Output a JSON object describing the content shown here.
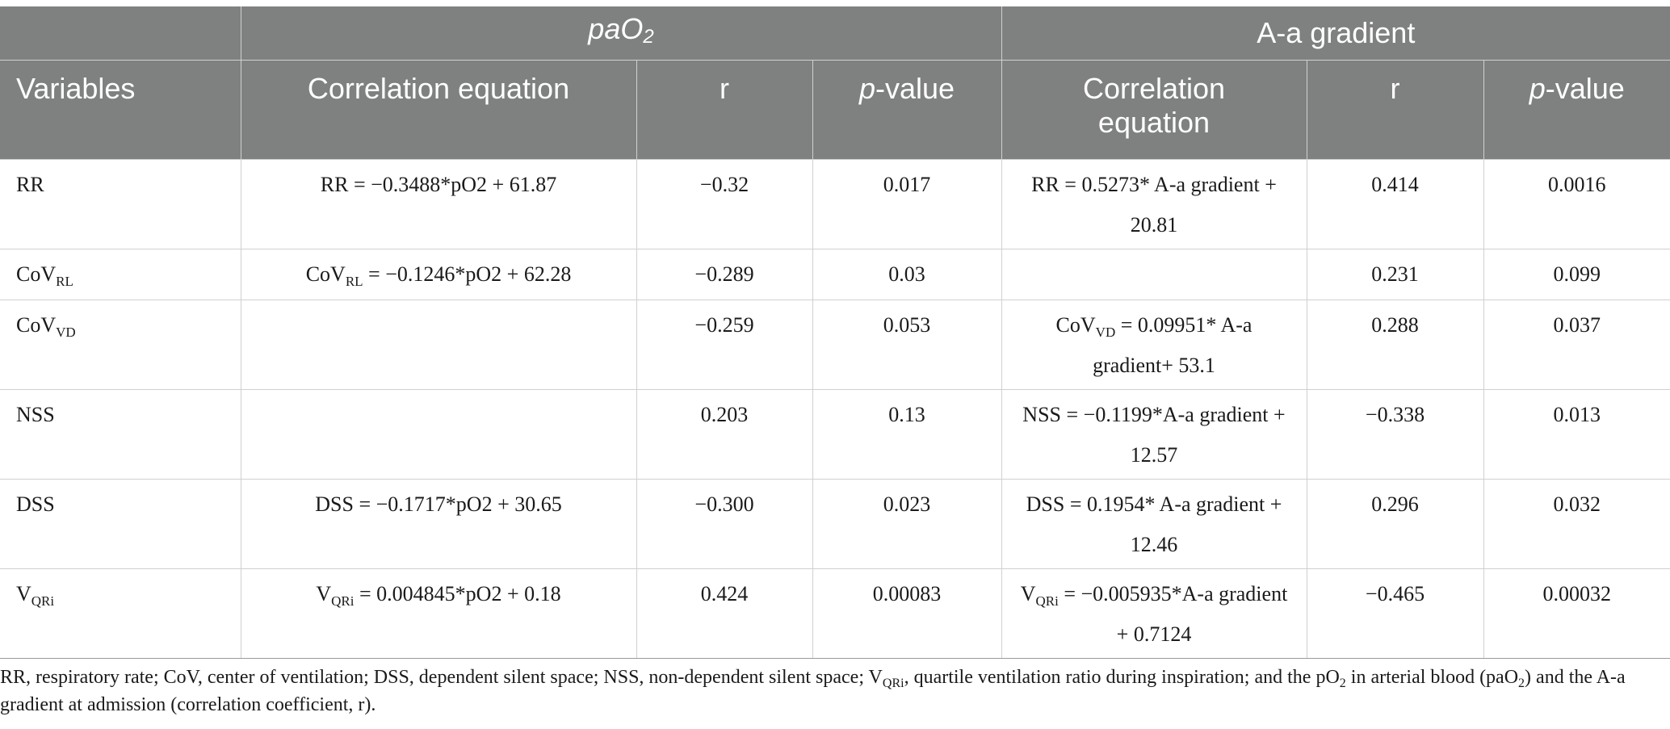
{
  "header": {
    "group_paO2": {
      "base": "paO",
      "sub": "2"
    },
    "group_aa": "A-a gradient",
    "variables": "Variables",
    "correlation_equation": "Correlation equation",
    "correlation_equation_aa_line1": "Correlation",
    "correlation_equation_aa_line2": "equation",
    "r": "r",
    "p_italic": "p",
    "p_rest": "-value"
  },
  "rows": [
    {
      "var": {
        "base": "RR",
        "sub": ""
      },
      "pa_eq": {
        "pre": "RR = −0.3488*pO2 + 61.87",
        "sub": "",
        "post": ""
      },
      "pa_r": "−0.32",
      "pa_p": "0.017",
      "aa_eq": {
        "pre": "RR = 0.5273* A-a gradient + 20.81",
        "sub": "",
        "post": ""
      },
      "aa_r": "0.414",
      "aa_p": "0.0016"
    },
    {
      "var": {
        "base": "CoV",
        "sub": "RL"
      },
      "pa_eq": {
        "pre": "CoV",
        "sub": "RL",
        "post": " = −0.1246*pO2 + 62.28"
      },
      "pa_r": "−0.289",
      "pa_p": "0.03",
      "aa_eq": {
        "pre": "",
        "sub": "",
        "post": ""
      },
      "aa_r": "0.231",
      "aa_p": "0.099"
    },
    {
      "var": {
        "base": "CoV",
        "sub": "VD"
      },
      "pa_eq": {
        "pre": "",
        "sub": "",
        "post": ""
      },
      "pa_r": "−0.259",
      "pa_p": "0.053",
      "aa_eq": {
        "pre": "CoV",
        "sub": "VD",
        "post": " = 0.09951* A-a gradient+ 53.1"
      },
      "aa_r": "0.288",
      "aa_p": "0.037"
    },
    {
      "var": {
        "base": "NSS",
        "sub": ""
      },
      "pa_eq": {
        "pre": "",
        "sub": "",
        "post": ""
      },
      "pa_r": "0.203",
      "pa_p": "0.13",
      "aa_eq": {
        "pre": "NSS = −0.1199*A-a gradient + 12.57",
        "sub": "",
        "post": ""
      },
      "aa_r": "−0.338",
      "aa_p": "0.013"
    },
    {
      "var": {
        "base": "DSS",
        "sub": ""
      },
      "pa_eq": {
        "pre": "DSS = −0.1717*pO2 + 30.65",
        "sub": "",
        "post": ""
      },
      "pa_r": "−0.300",
      "pa_p": "0.023",
      "aa_eq": {
        "pre": "DSS = 0.1954* A-a gradient + 12.46",
        "sub": "",
        "post": ""
      },
      "aa_r": "0.296",
      "aa_p": "0.032"
    },
    {
      "var": {
        "base": "V",
        "sub": "QRi"
      },
      "pa_eq": {
        "pre": "V",
        "sub": "QRi",
        "post": " = 0.004845*pO2 + 0.18"
      },
      "pa_r": "0.424",
      "pa_p": "0.00083",
      "aa_eq": {
        "pre": "V",
        "sub": "QRi",
        "post": " = −0.005935*A-a gradient + 0.7124"
      },
      "aa_r": "−0.465",
      "aa_p": "0.00032"
    }
  ],
  "footnote": {
    "t1": "RR, respiratory rate; CoV, center of ventilation; DSS, dependent silent space; NSS, non-dependent silent space; V",
    "s1": "QRi",
    "t2": ", quartile ventilation ratio during inspiration; and the pO",
    "s2": "2",
    "t3": " in arterial blood (paO",
    "s3": "2",
    "t4": ") and the A-a gradient at admission (correlation coefficient, r)."
  }
}
